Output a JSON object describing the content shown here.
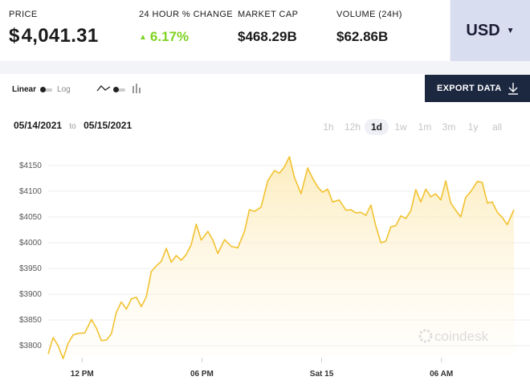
{
  "stats": {
    "price": {
      "label": "PRICE",
      "currency_symbol": "$",
      "value": "4,041.31"
    },
    "change": {
      "label": "24 HOUR % CHANGE",
      "value": "6.17%"
    },
    "market_cap": {
      "label": "MARKET CAP",
      "value": "$468.29B"
    },
    "volume": {
      "label": "VOLUME (24H)",
      "value": "$62.86B"
    }
  },
  "currency_selector": {
    "value": "USD"
  },
  "controls": {
    "linear_label": "Linear",
    "log_label": "Log"
  },
  "export_label": "EXPORT DATA",
  "date_range": {
    "from": "05/14/2021",
    "to_label": "to",
    "to": "05/15/2021"
  },
  "ranges": [
    {
      "label": "1h",
      "active": false
    },
    {
      "label": "12h",
      "active": false
    },
    {
      "label": "1d",
      "active": true
    },
    {
      "label": "1w",
      "active": false
    },
    {
      "label": "1m",
      "active": false
    },
    {
      "label": "3m",
      "active": false
    },
    {
      "label": "1y",
      "active": false
    },
    {
      "label": "all",
      "active": false
    }
  ],
  "watermark": "coindesk",
  "colors": {
    "line": "#f2c230",
    "positive": "#7fd321",
    "export_bg": "#1c2740",
    "currency_bg": "#d8ddf0"
  },
  "chart_data": {
    "type": "area",
    "ylim": [
      3780,
      4170
    ],
    "yticks": [
      3800,
      3850,
      3900,
      3950,
      4000,
      4050,
      4100,
      4150
    ],
    "ytick_labels": [
      "$3800",
      "$3850",
      "$3900",
      "$3950",
      "$4000",
      "$4050",
      "$4100",
      "$4150"
    ],
    "xlim": [
      "2021-05-14 10:18",
      "2021-05-15 09:38"
    ],
    "xticks": [
      "2021-05-14 12:00",
      "2021-05-14 18:00",
      "2021-05-15 00:00",
      "2021-05-15 06:00"
    ],
    "xtick_labels": [
      "12 PM",
      "06 PM",
      "Sat 15",
      "06 AM"
    ],
    "series": [
      {
        "x": [
          "2021-05-14 10:18",
          "2021-05-14 10:33",
          "2021-05-14 10:48",
          "2021-05-14 11:03",
          "2021-05-14 11:18",
          "2021-05-14 11:33",
          "2021-05-14 11:48",
          "2021-05-14 12:08",
          "2021-05-14 12:28",
          "2021-05-14 12:43",
          "2021-05-14 12:58",
          "2021-05-14 13:13",
          "2021-05-14 13:28",
          "2021-05-14 13:43",
          "2021-05-14 13:58",
          "2021-05-14 14:13",
          "2021-05-14 14:28",
          "2021-05-14 14:43",
          "2021-05-14 14:58",
          "2021-05-14 15:13",
          "2021-05-14 15:28",
          "2021-05-14 15:43",
          "2021-05-14 15:58",
          "2021-05-14 16:13",
          "2021-05-14 16:28",
          "2021-05-14 16:43",
          "2021-05-14 16:58",
          "2021-05-14 17:13",
          "2021-05-14 17:28",
          "2021-05-14 17:43",
          "2021-05-14 17:58",
          "2021-05-14 18:18",
          "2021-05-14 18:33",
          "2021-05-14 18:48",
          "2021-05-14 19:08",
          "2021-05-14 19:28",
          "2021-05-14 19:48",
          "2021-05-14 20:08",
          "2021-05-14 20:23",
          "2021-05-14 20:38",
          "2021-05-14 20:58",
          "2021-05-14 21:18",
          "2021-05-14 21:38",
          "2021-05-14 21:53",
          "2021-05-14 22:08",
          "2021-05-14 22:23",
          "2021-05-14 22:38",
          "2021-05-14 22:58",
          "2021-05-14 23:18",
          "2021-05-14 23:33",
          "2021-05-14 23:48",
          "2021-05-15 00:03",
          "2021-05-15 00:18",
          "2021-05-15 00:33",
          "2021-05-15 00:53",
          "2021-05-15 01:13",
          "2021-05-15 01:28",
          "2021-05-15 01:43",
          "2021-05-15 01:58",
          "2021-05-15 02:13",
          "2021-05-15 02:28",
          "2021-05-15 02:43",
          "2021-05-15 02:58",
          "2021-05-15 03:13",
          "2021-05-15 03:28",
          "2021-05-15 03:43",
          "2021-05-15 03:58",
          "2021-05-15 04:13",
          "2021-05-15 04:28",
          "2021-05-15 04:43",
          "2021-05-15 04:58",
          "2021-05-15 05:13",
          "2021-05-15 05:28",
          "2021-05-15 05:43",
          "2021-05-15 05:58",
          "2021-05-15 06:13",
          "2021-05-15 06:28",
          "2021-05-15 06:43",
          "2021-05-15 06:58",
          "2021-05-15 07:13",
          "2021-05-15 07:28",
          "2021-05-15 07:48",
          "2021-05-15 08:03",
          "2021-05-15 08:18",
          "2021-05-15 08:33",
          "2021-05-15 08:48",
          "2021-05-15 09:03",
          "2021-05-15 09:18",
          "2021-05-15 09:38"
        ],
        "values": [
          3784,
          3816,
          3800,
          3775,
          3805,
          3821,
          3824,
          3825,
          3851,
          3834,
          3810,
          3811,
          3823,
          3865,
          3885,
          3871,
          3891,
          3894,
          3876,
          3895,
          3944,
          3955,
          3964,
          3989,
          3962,
          3975,
          3966,
          3977,
          3996,
          4036,
          4005,
          4022,
          4005,
          3979,
          4006,
          3993,
          3990,
          4022,
          4064,
          4061,
          4069,
          4120,
          4140,
          4135,
          4147,
          4167,
          4127,
          4095,
          4145,
          4125,
          4108,
          4098,
          4104,
          4079,
          4083,
          4063,
          4064,
          4058,
          4059,
          4053,
          4073,
          4032,
          4000,
          4003,
          4031,
          4033,
          4052,
          4047,
          4062,
          4103,
          4079,
          4104,
          4089,
          4095,
          4083,
          4120,
          4077,
          4063,
          4050,
          4088,
          4099,
          4119,
          4117,
          4077,
          4079,
          4059,
          4049,
          4035,
          4064
        ]
      }
    ]
  }
}
